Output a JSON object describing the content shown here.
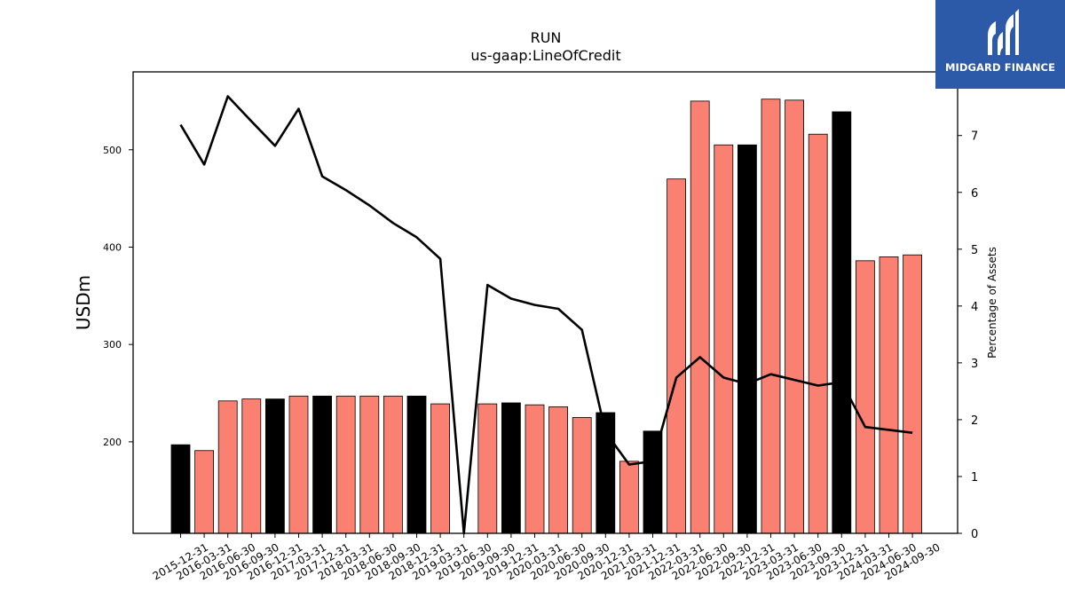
{
  "chart_data": {
    "type": "bar",
    "title": "RUN",
    "subtitle": "us-gaap:LineOfCredit",
    "ylabel": "USDm",
    "y2label": "Percentage of Assets",
    "ylim": [
      106,
      580
    ],
    "y2lim": [
      0,
      8.12
    ],
    "yticks": [
      200,
      300,
      400,
      500
    ],
    "y2ticks": [
      0,
      1,
      2,
      3,
      4,
      5,
      6,
      7
    ],
    "categories": [
      "2015-12-31",
      "2016-03-31",
      "2016-06-30",
      "2016-09-30",
      "2016-12-31",
      "2017-03-31",
      "2017-12-31",
      "2018-03-31",
      "2018-06-30",
      "2018-09-30",
      "2018-12-31",
      "2019-03-31",
      "2019-06-30",
      "2019-09-30",
      "2019-12-31",
      "2020-03-31",
      "2020-06-30",
      "2020-09-30",
      "2020-12-31",
      "2021-03-31",
      "2021-12-31",
      "2022-03-31",
      "2022-06-30",
      "2022-09-30",
      "2022-12-31",
      "2023-03-31",
      "2023-06-30",
      "2023-09-30",
      "2023-12-31",
      "2024-03-31",
      "2024-06-30",
      "2024-09-30"
    ],
    "series": [
      {
        "kind": "bar",
        "axis": "left",
        "values": [
          197,
          191,
          242,
          244,
          244,
          247,
          247,
          247,
          247,
          247,
          247,
          239,
          null,
          239,
          240,
          238,
          236,
          225,
          230,
          180,
          211,
          470,
          550,
          505,
          505,
          552,
          551,
          516,
          539,
          386,
          390,
          392
        ],
        "colors": [
          "#000000",
          "#fa8072",
          "#fa8072",
          "#fa8072",
          "#000000",
          "#fa8072",
          "#000000",
          "#fa8072",
          "#fa8072",
          "#fa8072",
          "#000000",
          "#fa8072",
          "#fa8072",
          "#fa8072",
          "#000000",
          "#fa8072",
          "#fa8072",
          "#fa8072",
          "#000000",
          "#fa8072",
          "#000000",
          "#fa8072",
          "#fa8072",
          "#fa8072",
          "#000000",
          "#fa8072",
          "#fa8072",
          "#fa8072",
          "#000000",
          "#fa8072",
          "#fa8072",
          "#fa8072"
        ]
      },
      {
        "kind": "line",
        "axis": "right",
        "color": "#000000",
        "values": [
          7.19,
          6.49,
          7.69,
          7.25,
          6.82,
          7.47,
          6.28,
          6.04,
          5.77,
          5.46,
          5.21,
          4.83,
          0.0,
          4.37,
          4.13,
          4.02,
          3.95,
          3.58,
          1.78,
          1.21,
          1.27,
          2.74,
          3.1,
          2.74,
          2.63,
          2.8,
          2.7,
          2.6,
          2.66,
          1.87,
          1.82,
          1.77
        ]
      }
    ],
    "grid": false,
    "legend": "none"
  },
  "logo": {
    "text": "MIDGARD FINANCE",
    "bg_color": "#2c5aa8"
  }
}
